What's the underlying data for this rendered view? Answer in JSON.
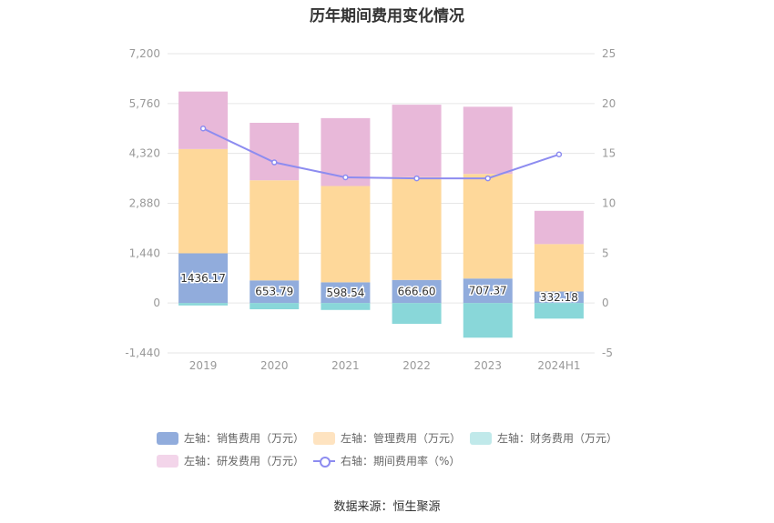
{
  "chart_data": {
    "type": "bar",
    "title": "历年期间费用变化情况",
    "categories": [
      "2019",
      "2020",
      "2021",
      "2022",
      "2023",
      "2024H1"
    ],
    "series": [
      {
        "name": "左轴：销售费用（万元）",
        "axis": "left",
        "color": "#91acdc",
        "values": [
          1436.17,
          653.79,
          598.54,
          666.6,
          707.37,
          332.18
        ]
      },
      {
        "name": "左轴：管理费用（万元）",
        "axis": "left",
        "color": "#fed89a",
        "values": [
          3010,
          2890,
          2780,
          2970,
          3020,
          1370
        ]
      },
      {
        "name": "左轴：财务费用（万元）",
        "axis": "left",
        "color": "#89d7d9",
        "values": [
          -70,
          -180,
          -200,
          -600,
          -1000,
          -450
        ]
      },
      {
        "name": "左轴：研发费用（万元）",
        "axis": "left",
        "color": "#e8b8d9",
        "values": [
          1660,
          1660,
          1960,
          2090,
          1940,
          960
        ]
      },
      {
        "name": "右轴：期间费用率（%）",
        "axis": "right",
        "type": "line",
        "color": "#8d8cf0",
        "values": [
          17.5,
          14.1,
          12.6,
          12.5,
          12.5,
          14.9
        ]
      }
    ],
    "data_labels": [
      "1436.17",
      "653.79",
      "598.54",
      "666.60",
      "707.37",
      "332.18"
    ],
    "left_axis": {
      "ylim": [
        -1440,
        7200
      ],
      "ticks": [
        "-1,440",
        "0",
        "1,440",
        "2,880",
        "4,320",
        "5,760",
        "7,200"
      ]
    },
    "right_axis": {
      "ylim": [
        -5,
        25
      ],
      "ticks": [
        "-5",
        "0",
        "5",
        "10",
        "15",
        "20",
        "25"
      ]
    },
    "legend_position": "bottom",
    "grid": true
  },
  "legend": {
    "items": [
      {
        "label": "左轴：销售费用（万元）",
        "color": "#91acdc"
      },
      {
        "label": "左轴：管理费用（万元）",
        "color": "#fee3c0"
      },
      {
        "label": "左轴：财务费用（万元）",
        "color": "#c0e9ea"
      },
      {
        "label": "左轴：研发费用（万元）",
        "color": "#f3d5ea"
      },
      {
        "label": "右轴：期间费用率（%）",
        "color": "#8d8cf0"
      }
    ]
  },
  "source": "数据来源：恒生聚源"
}
